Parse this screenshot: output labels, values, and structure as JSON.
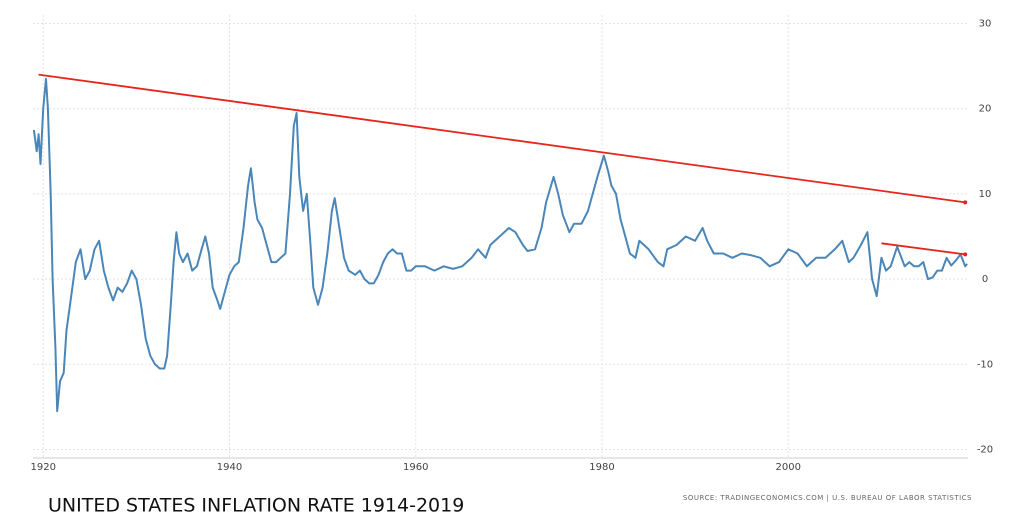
{
  "chart_data": {
    "type": "line",
    "title": "UNITED STATES INFLATION RATE 1914-2019",
    "source": "SOURCE: TRADINGECONOMICS.COM | U.S. BUREAU OF LABOR STATISTICS",
    "x": [
      1919.0,
      1919.3,
      1919.5,
      1919.7,
      1920.0,
      1920.3,
      1920.5,
      1920.8,
      1921.0,
      1921.3,
      1921.5,
      1921.8,
      1922.2,
      1922.5,
      1923.0,
      1923.5,
      1924.0,
      1924.5,
      1925.0,
      1925.5,
      1926.0,
      1926.5,
      1927.0,
      1927.5,
      1928.0,
      1928.5,
      1929.0,
      1929.5,
      1930.0,
      1930.5,
      1931.0,
      1931.5,
      1932.0,
      1932.5,
      1933.0,
      1933.3,
      1933.7,
      1934.0,
      1934.3,
      1934.6,
      1935.0,
      1935.5,
      1936.0,
      1936.5,
      1937.0,
      1937.4,
      1937.8,
      1938.2,
      1938.7,
      1939.0,
      1939.5,
      1940.0,
      1940.5,
      1941.0,
      1941.5,
      1942.0,
      1942.3,
      1942.7,
      1943.0,
      1943.5,
      1944.0,
      1944.5,
      1945.0,
      1945.5,
      1946.0,
      1946.5,
      1946.9,
      1947.2,
      1947.5,
      1947.9,
      1948.3,
      1948.7,
      1949.0,
      1949.5,
      1950.0,
      1950.5,
      1951.0,
      1951.3,
      1951.8,
      1952.3,
      1952.8,
      1953.5,
      1954.0,
      1954.5,
      1955.0,
      1955.5,
      1956.0,
      1956.5,
      1957.0,
      1957.5,
      1958.0,
      1958.5,
      1959.0,
      1959.5,
      1960.0,
      1961.0,
      1962.0,
      1963.0,
      1964.0,
      1965.0,
      1966.0,
      1966.7,
      1967.5,
      1968.0,
      1969.0,
      1970.0,
      1970.7,
      1971.5,
      1972.0,
      1972.8,
      1973.5,
      1974.0,
      1974.8,
      1975.3,
      1975.8,
      1976.5,
      1977.0,
      1977.8,
      1978.5,
      1979.0,
      1979.5,
      1980.2,
      1980.7,
      1981.0,
      1981.5,
      1982.0,
      1982.5,
      1983.0,
      1983.6,
      1984.0,
      1985.0,
      1986.0,
      1986.6,
      1987.0,
      1988.0,
      1989.0,
      1990.0,
      1990.8,
      1991.3,
      1992.0,
      1993.0,
      1994.0,
      1995.0,
      1996.0,
      1997.0,
      1998.0,
      1999.0,
      2000.0,
      2001.0,
      2002.0,
      2003.0,
      2004.0,
      2005.0,
      2005.8,
      2006.5,
      2007.0,
      2007.8,
      2008.5,
      2009.0,
      2009.5,
      2010.0,
      2010.5,
      2011.0,
      2011.7,
      2012.5,
      2013.0,
      2013.5,
      2014.0,
      2014.5,
      2015.0,
      2015.5,
      2016.0,
      2016.5,
      2017.0,
      2017.5,
      2018.0,
      2018.5,
      2019.0,
      2019.2
    ],
    "series": [
      {
        "color": "#4a86b8",
        "values": [
          17.5,
          15,
          17,
          13.5,
          20,
          23.5,
          20,
          10,
          0,
          -8,
          -15.5,
          -12,
          -11,
          -6,
          -2,
          2,
          3.5,
          0,
          1,
          3.5,
          4.5,
          1,
          -1,
          -2.5,
          -1,
          -1.5,
          -0.5,
          1,
          0,
          -3,
          -7,
          -9,
          -10,
          -10.5,
          -10.5,
          -9,
          -3,
          2,
          5.5,
          3,
          2,
          3,
          1,
          1.5,
          3.5,
          5,
          3,
          -1,
          -2.5,
          -3.5,
          -1.5,
          0.5,
          1.5,
          2,
          6,
          11,
          13,
          9,
          7,
          6,
          4,
          2,
          2,
          2.5,
          3,
          10,
          18,
          19.5,
          12,
          8,
          10,
          4,
          -1,
          -3,
          -1,
          3,
          8,
          9.5,
          6,
          2.5,
          1,
          0.5,
          1,
          0,
          -0.5,
          -0.5,
          0.5,
          2,
          3,
          3.5,
          3,
          3,
          1,
          1,
          1.5,
          1.5,
          1,
          1.5,
          1.2,
          1.5,
          2.5,
          3.5,
          2.5,
          4,
          5,
          6,
          5.5,
          4,
          3.3,
          3.5,
          6,
          9,
          12,
          10,
          7.5,
          5.5,
          6.5,
          6.5,
          8,
          10,
          12,
          14.5,
          12.5,
          11,
          10,
          7,
          5,
          3,
          2.5,
          4.5,
          3.5,
          2,
          1.5,
          3.5,
          4,
          5,
          4.5,
          6,
          4.5,
          3,
          3,
          2.5,
          3,
          2.8,
          2.5,
          1.5,
          2,
          3.5,
          3,
          1.5,
          2.5,
          2.5,
          3.5,
          4.5,
          2,
          2.5,
          4,
          5.5,
          0,
          -2,
          2.5,
          1,
          1.5,
          3.8,
          1.5,
          2,
          1.5,
          1.5,
          2,
          0,
          0.2,
          1,
          1,
          2.5,
          1.6,
          2.2,
          2.9,
          1.5,
          1.8
        ]
      }
    ],
    "trend_lines": [
      {
        "color": "#e8241d",
        "x": [
          1919.5,
          2019.0
        ],
        "values": [
          24,
          9
        ]
      },
      {
        "color": "#e8241d",
        "x": [
          2010.0,
          2019.0
        ],
        "values": [
          4.2,
          2.9
        ]
      }
    ],
    "xlim": [
      1918.9,
      2019.3
    ],
    "ylim": [
      -21,
      31
    ],
    "xticks": [
      1920,
      1940,
      1960,
      1980,
      2000
    ],
    "yticks": [
      -20,
      -10,
      0,
      10,
      20,
      30
    ],
    "grid": true
  }
}
